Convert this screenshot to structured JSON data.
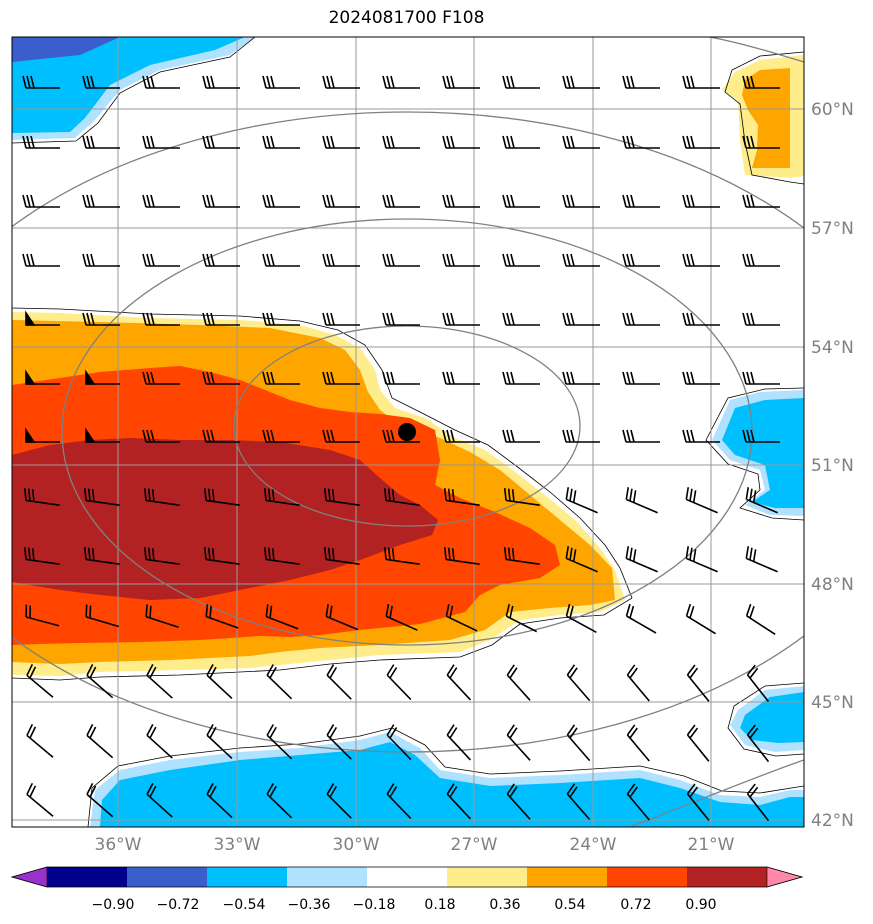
{
  "title": "2024081700 F108",
  "map": {
    "projection_hint": "regional lat/lon",
    "lat_labels": [
      "60°N",
      "57°N",
      "54°N",
      "51°N",
      "48°N",
      "45°N",
      "42°N"
    ],
    "lon_labels": [
      "36°W",
      "33°W",
      "30°W",
      "27°W",
      "24°W",
      "21°W"
    ],
    "storm_center_marker": "black-dot"
  },
  "colorbar": {
    "ticks": [
      "−0.90",
      "−0.72",
      "−0.54",
      "−0.36",
      "−0.18",
      "0.18",
      "0.36",
      "0.54",
      "0.72",
      "0.90"
    ],
    "colors": [
      "#9932CC",
      "#00008B",
      "#3A5FCD",
      "#00BFFF",
      "#B0E2FF",
      "#FFFFFF",
      "#FFEC8B",
      "#FFA500",
      "#FF4500",
      "#B22222",
      "#FF88AA"
    ]
  },
  "fill_colors": {
    "dark_blue": "#3A5FCD",
    "blue": "#00BFFF",
    "light_blue": "#B0E2FF",
    "yellow": "#FFEC8B",
    "orange": "#FFA500",
    "red_orange": "#FF4500",
    "dark_red": "#B22222",
    "grid": "#999999",
    "contour": "#808080"
  }
}
